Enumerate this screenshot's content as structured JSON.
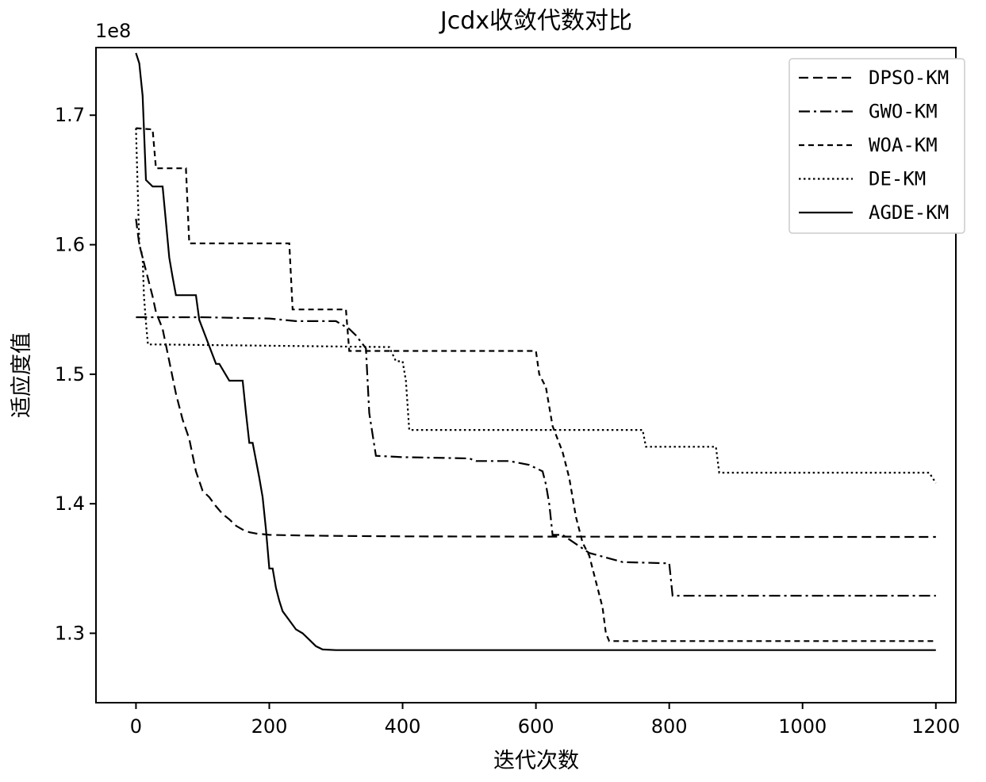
{
  "chart_data": {
    "type": "line",
    "title": "Jcdx收敛代数对比",
    "xlabel": "迭代次数",
    "ylabel": "适应度值",
    "y_offset_label": "1e8",
    "y_scale": 100000000,
    "xlim": [
      -60,
      1230
    ],
    "ylim": [
      124640000.0,
      175220000.0
    ],
    "grid": false,
    "legend_position": "top-right",
    "x_ticks": [
      0,
      200,
      400,
      600,
      800,
      1000,
      1200
    ],
    "x_tick_labels": [
      "0",
      "200",
      "400",
      "600",
      "800",
      "1000",
      "1200"
    ],
    "y_ticks": [
      130000000.0,
      140000000.0,
      150000000.0,
      160000000.0,
      170000000.0
    ],
    "y_tick_labels": [
      "1.3",
      "1.4",
      "1.5",
      "1.6",
      "1.7"
    ],
    "series": [
      {
        "name": "DPSO-KM",
        "dash": "12,6",
        "x": [
          0,
          5,
          10,
          15,
          20,
          25,
          30,
          40,
          50,
          60,
          70,
          80,
          90,
          100,
          110,
          120,
          130,
          140,
          150,
          160,
          170,
          180,
          190,
          200,
          250,
          300,
          350,
          400,
          600,
          800,
          1000,
          1200
        ],
        "y": [
          162000000.0,
          160000000.0,
          159000000.0,
          158000000.0,
          157000000.0,
          156000000.0,
          154800000.0,
          153500000.0,
          151000000.0,
          148500000.0,
          146500000.0,
          145000000.0,
          142500000.0,
          141000000.0,
          140500000.0,
          139800000.0,
          139200000.0,
          138800000.0,
          138300000.0,
          138000000.0,
          137800000.0,
          137700000.0,
          137650000.0,
          137600000.0,
          137550000.0,
          137520000.0,
          137500000.0,
          137480000.0,
          137460000.0,
          137450000.0,
          137440000.0,
          137440000.0
        ]
      },
      {
        "name": "GWO-KM",
        "dash": "14,5,3,5",
        "x": [
          0,
          100,
          200,
          240,
          300,
          320,
          330,
          345,
          350,
          360,
          400,
          500,
          510,
          560,
          590,
          610,
          615,
          620,
          625,
          640,
          680,
          730,
          800,
          805,
          1000,
          1200
        ],
        "y": [
          154400000.0,
          154400000.0,
          154300000.0,
          154100000.0,
          154100000.0,
          153500000.0,
          153000000.0,
          152000000.0,
          147000000.0,
          143700000.0,
          143600000.0,
          143500000.0,
          143300000.0,
          143300000.0,
          143000000.0,
          142500000.0,
          141500000.0,
          140000000.0,
          137600000.0,
          137600000.0,
          136200000.0,
          135500000.0,
          135400000.0,
          132900000.0,
          132900000.0,
          132900000.0
        ]
      },
      {
        "name": "WOA-KM",
        "dash": "7,5",
        "x": [
          0,
          25,
          30,
          75,
          80,
          230,
          235,
          315,
          320,
          600,
          605,
          615,
          625,
          640,
          650,
          660,
          670,
          680,
          690,
          700,
          705,
          710,
          1200
        ],
        "y": [
          169000000.0,
          168900000.0,
          165900000.0,
          165900000.0,
          160100000.0,
          160100000.0,
          155000000.0,
          155000000.0,
          151800000.0,
          151800000.0,
          150000000.0,
          149000000.0,
          146000000.0,
          144000000.0,
          142000000.0,
          139000000.0,
          137000000.0,
          136000000.0,
          134000000.0,
          132000000.0,
          130000000.0,
          129400000.0,
          129400000.0
        ]
      },
      {
        "name": "DE-KM",
        "dash": "2.5,3.5",
        "x": [
          0,
          5,
          8,
          10,
          12,
          15,
          18,
          25,
          30,
          380,
          390,
          400,
          405,
          410,
          760,
          765,
          870,
          875,
          1190,
          1195,
          1200
        ],
        "y": [
          169000000.0,
          160000000.0,
          159500000.0,
          159000000.0,
          156000000.0,
          154000000.0,
          152300000.0,
          152300000.0,
          152300000.0,
          152100000.0,
          151000000.0,
          151000000.0,
          149500000.0,
          145700000.0,
          145700000.0,
          144400000.0,
          144400000.0,
          142400000.0,
          142400000.0,
          142000000.0,
          141600000.0
        ]
      },
      {
        "name": "AGDE-KM",
        "dash": "",
        "x": [
          0,
          5,
          10,
          15,
          25,
          40,
          50,
          55,
          60,
          90,
          95,
          120,
          125,
          140,
          160,
          165,
          170,
          175,
          185,
          190,
          195,
          200,
          205,
          210,
          215,
          220,
          230,
          240,
          250,
          260,
          270,
          280,
          300,
          400,
          600,
          800,
          1000,
          1200
        ],
        "y": [
          174800000.0,
          174000000.0,
          171500000.0,
          165000000.0,
          164500000.0,
          164500000.0,
          159000000.0,
          157500000.0,
          156100000.0,
          156100000.0,
          154200000.0,
          150800000.0,
          150800000.0,
          149500000.0,
          149500000.0,
          147000000.0,
          144700000.0,
          144700000.0,
          142000000.0,
          140500000.0,
          138000000.0,
          135000000.0,
          135000000.0,
          133500000.0,
          132500000.0,
          131700000.0,
          131000000.0,
          130300000.0,
          130000000.0,
          129500000.0,
          129000000.0,
          128750000.0,
          128700000.0,
          128700000.0,
          128700000.0,
          128700000.0,
          128700000.0,
          128700000.0
        ]
      }
    ]
  }
}
